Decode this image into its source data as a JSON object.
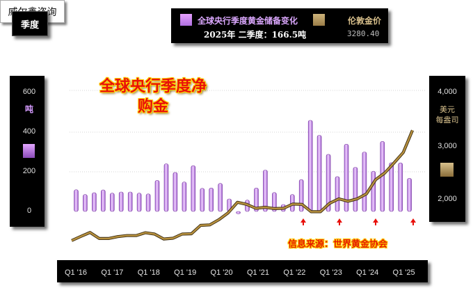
{
  "header": {
    "season_label": "季度",
    "brand": "威尔鑫咨询",
    "reserve_title": "全球央行季度黄金储备变化",
    "reserve_latest": "2025年 二季度：166.5吨",
    "gold_title": "伦敦金价",
    "gold_latest": "3280.40"
  },
  "colors": {
    "bars": "#c88cf0",
    "bar_edge": "#7a3fa0",
    "gold_line": "#b8923f",
    "gold_line_outline": "#3a2a10",
    "title": "#e8100a",
    "title_outline": "#ffd400"
  },
  "marker_icons": [
    "arrow-up-icon",
    "arrow-up-icon",
    "arrow-up-icon",
    "arrow-up-icon"
  ],
  "chart_data": {
    "type": "bar",
    "title": "全球央行季度净购金",
    "source": "信息来源：世界黄金协会",
    "left_axis": {
      "unit": "吨",
      "ticks": [
        "600",
        "400",
        "200",
        "0"
      ],
      "range": [
        -30,
        650
      ]
    },
    "right_axis": {
      "unit": "美元每盎司",
      "ticks": [
        "4,000",
        "3,000",
        "2,000"
      ],
      "range": [
        1100,
        4250
      ]
    },
    "x_tick_labels": [
      "Q1 '16",
      "Q1 '17",
      "Q1 '18",
      "Q1 '19",
      "Q1 '20",
      "Q1 '21",
      "Q1 '22",
      "Q1 '23",
      "Q1 '24",
      "Q1 '25"
    ],
    "categories": [
      "2016Q1",
      "2016Q2",
      "2016Q3",
      "2016Q4",
      "2017Q1",
      "2017Q2",
      "2017Q3",
      "2017Q4",
      "2018Q1",
      "2018Q2",
      "2018Q3",
      "2018Q4",
      "2019Q1",
      "2019Q2",
      "2019Q3",
      "2019Q4",
      "2020Q1",
      "2020Q2",
      "2020Q3",
      "2020Q4",
      "2021Q1",
      "2021Q2",
      "2021Q3",
      "2021Q4",
      "2022Q1",
      "2022Q2",
      "2022Q3",
      "2022Q4",
      "2023Q1",
      "2023Q2",
      "2023Q3",
      "2023Q4",
      "2024Q1",
      "2024Q2",
      "2024Q3",
      "2024Q4",
      "2025Q1",
      "2025Q2"
    ],
    "series": [
      {
        "name": "全球央行季度黄金储备变化",
        "type": "bar",
        "axis": "left",
        "values": [
          109,
          85,
          94,
          108,
          92,
          98,
          98,
          92,
          88,
          156,
          239,
          196,
          148,
          230,
          116,
          118,
          141,
          63,
          -12,
          57,
          118,
          208,
          95,
          35,
          85,
          160,
          458,
          383,
          287,
          175,
          338,
          222,
          299,
          202,
          352,
          245,
          244,
          166.5
        ]
      },
      {
        "name": "伦敦金价",
        "type": "line",
        "axis": "right",
        "values": [
          1180,
          1260,
          1335,
          1220,
          1220,
          1255,
          1275,
          1275,
          1330,
          1305,
          1210,
          1225,
          1305,
          1310,
          1470,
          1480,
          1580,
          1710,
          1910,
          1870,
          1795,
          1815,
          1790,
          1795,
          1875,
          1870,
          1730,
          1730,
          1890,
          1975,
          1930,
          1975,
          2070,
          2340,
          2470,
          2660,
          2860,
          3280.4
        ]
      }
    ]
  }
}
